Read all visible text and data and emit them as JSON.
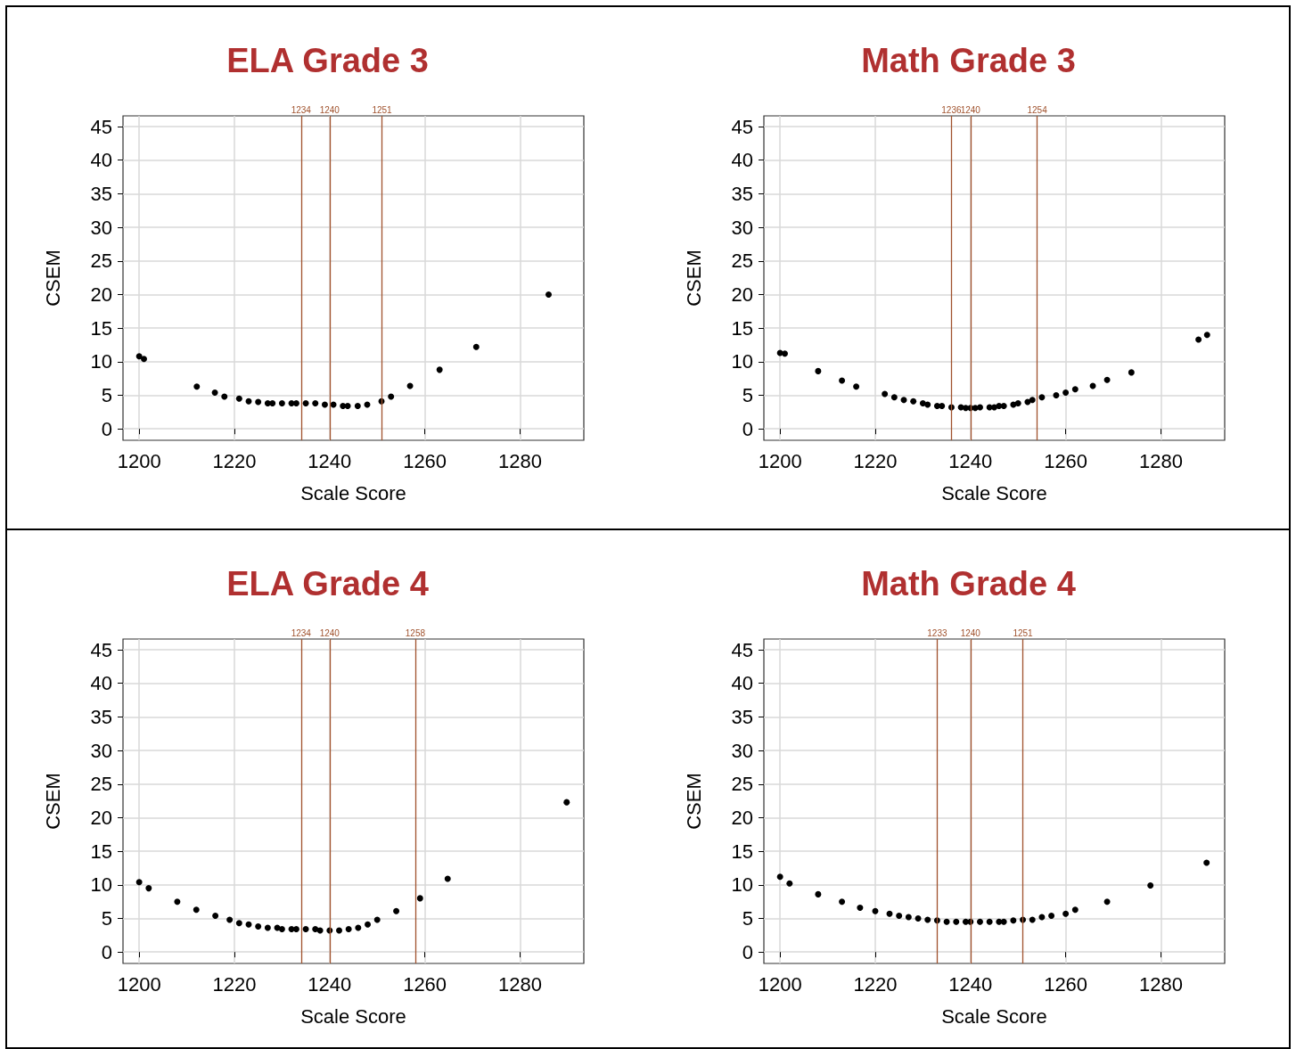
{
  "chart_data": [
    {
      "type": "scatter",
      "title": "ELA Grade 3",
      "xlabel": "Scale Score",
      "ylabel": "CSEM",
      "xlim": [
        1196.6,
        1293.4
      ],
      "ylim": [
        -1.7,
        46.6
      ],
      "xticks": [
        1200,
        1220,
        1240,
        1260,
        1280
      ],
      "yticks": [
        0,
        5,
        10,
        15,
        20,
        25,
        30,
        35,
        40,
        45
      ],
      "grid": true,
      "marker": "circle",
      "x": [
        1200,
        1201,
        1212.1,
        1215.9,
        1217.9,
        1221,
        1223,
        1225,
        1227,
        1228,
        1230,
        1232,
        1233,
        1235,
        1237,
        1239,
        1240.8,
        1242.8,
        1243.8,
        1245.9,
        1247.9,
        1250.9,
        1252.9,
        1256.9,
        1263.1,
        1270.8,
        1286
      ],
      "series": [
        {
          "color": "#000000",
          "values": [
            10.8,
            10.4,
            6.3,
            5.4,
            4.8,
            4.5,
            4.1,
            4.0,
            3.8,
            3.8,
            3.8,
            3.8,
            3.8,
            3.8,
            3.8,
            3.6,
            3.6,
            3.4,
            3.4,
            3.4,
            3.6,
            4.1,
            4.8,
            6.4,
            8.8,
            12.2,
            20.0
          ]
        }
      ],
      "ref_lines": [
        {
          "axis": "x",
          "value": 1234,
          "label": "1234",
          "color": "#a0522d"
        },
        {
          "axis": "x",
          "value": 1240,
          "label": "1240",
          "color": "#a0522d"
        },
        {
          "axis": "x",
          "value": 1251,
          "label": "1251",
          "color": "#a0522d"
        }
      ]
    },
    {
      "type": "scatter",
      "title": "Math Grade 3",
      "xlabel": "Scale Score",
      "ylabel": "CSEM",
      "xlim": [
        1196.6,
        1293.4
      ],
      "ylim": [
        -1.7,
        46.6
      ],
      "xticks": [
        1200,
        1220,
        1240,
        1260,
        1280
      ],
      "yticks": [
        0,
        5,
        10,
        15,
        20,
        25,
        30,
        35,
        40,
        45
      ],
      "grid": true,
      "marker": "circle",
      "x": [
        1200,
        1201,
        1208,
        1213,
        1216,
        1222,
        1224,
        1226,
        1228,
        1230,
        1231,
        1233,
        1234,
        1236,
        1238,
        1239,
        1240,
        1241,
        1242,
        1244,
        1245,
        1246,
        1247,
        1249,
        1250,
        1252,
        1253,
        1255,
        1258,
        1260,
        1262,
        1265.7,
        1268.7,
        1273.8,
        1287.9,
        1289.7
      ],
      "series": [
        {
          "color": "#000000",
          "values": [
            11.3,
            11.2,
            8.6,
            7.2,
            6.3,
            5.2,
            4.7,
            4.3,
            4.1,
            3.8,
            3.6,
            3.4,
            3.4,
            3.2,
            3.2,
            3.1,
            3.1,
            3.1,
            3.2,
            3.2,
            3.2,
            3.4,
            3.4,
            3.6,
            3.8,
            4.0,
            4.3,
            4.7,
            5.0,
            5.4,
            5.9,
            6.4,
            7.3,
            8.4,
            13.3,
            14.0
          ]
        }
      ],
      "ref_lines": [
        {
          "axis": "x",
          "value": 1236,
          "label": "1236",
          "color": "#a0522d"
        },
        {
          "axis": "x",
          "value": 1240,
          "label": "1240",
          "color": "#a0522d"
        },
        {
          "axis": "x",
          "value": 1254,
          "label": "1254",
          "color": "#a0522d"
        }
      ]
    },
    {
      "type": "scatter",
      "title": "ELA Grade 4",
      "xlabel": "Scale Score",
      "ylabel": "CSEM",
      "xlim": [
        1196.6,
        1293.4
      ],
      "ylim": [
        -1.7,
        46.6
      ],
      "xticks": [
        1200,
        1220,
        1240,
        1260,
        1280
      ],
      "yticks": [
        0,
        5,
        10,
        15,
        20,
        25,
        30,
        35,
        40,
        45
      ],
      "grid": true,
      "marker": "circle",
      "x": [
        1200,
        1202,
        1208,
        1212,
        1216,
        1219,
        1221,
        1223,
        1225,
        1227,
        1229,
        1230,
        1232,
        1233,
        1235,
        1237,
        1238,
        1240,
        1242,
        1244,
        1246,
        1248,
        1250,
        1254,
        1259,
        1264.8,
        1289.8
      ],
      "series": [
        {
          "color": "#000000",
          "values": [
            10.4,
            9.5,
            7.5,
            6.3,
            5.4,
            4.8,
            4.3,
            4.1,
            3.8,
            3.6,
            3.6,
            3.4,
            3.4,
            3.4,
            3.4,
            3.4,
            3.2,
            3.2,
            3.2,
            3.4,
            3.6,
            4.1,
            4.8,
            6.1,
            8.0,
            10.9,
            22.3
          ]
        }
      ],
      "ref_lines": [
        {
          "axis": "x",
          "value": 1234,
          "label": "1234",
          "color": "#a0522d"
        },
        {
          "axis": "x",
          "value": 1240,
          "label": "1240",
          "color": "#a0522d"
        },
        {
          "axis": "x",
          "value": 1258,
          "label": "1258",
          "color": "#a0522d"
        }
      ]
    },
    {
      "type": "scatter",
      "title": "Math Grade 4",
      "xlabel": "Scale Score",
      "ylabel": "CSEM",
      "xlim": [
        1196.6,
        1293.4
      ],
      "ylim": [
        -1.7,
        46.6
      ],
      "xticks": [
        1200,
        1220,
        1240,
        1260,
        1280
      ],
      "yticks": [
        0,
        5,
        10,
        15,
        20,
        25,
        30,
        35,
        40,
        45
      ],
      "grid": true,
      "marker": "circle",
      "x": [
        1200,
        1202,
        1208,
        1213,
        1216.8,
        1220,
        1223,
        1225,
        1227,
        1229,
        1231,
        1233,
        1235,
        1237,
        1239,
        1240,
        1242,
        1244,
        1246,
        1247,
        1249,
        1251,
        1253,
        1255,
        1257,
        1260,
        1262,
        1268.7,
        1277.8,
        1289.6
      ],
      "series": [
        {
          "color": "#000000",
          "values": [
            11.2,
            10.2,
            8.6,
            7.5,
            6.6,
            6.1,
            5.7,
            5.4,
            5.2,
            5.0,
            4.8,
            4.7,
            4.5,
            4.5,
            4.5,
            4.5,
            4.5,
            4.5,
            4.5,
            4.5,
            4.7,
            4.8,
            4.8,
            5.2,
            5.4,
            5.7,
            6.3,
            7.5,
            9.9,
            13.3
          ]
        }
      ],
      "ref_lines": [
        {
          "axis": "x",
          "value": 1233,
          "label": "1233",
          "color": "#a0522d"
        },
        {
          "axis": "x",
          "value": 1240,
          "label": "1240",
          "color": "#a0522d"
        },
        {
          "axis": "x",
          "value": 1251,
          "label": "1251",
          "color": "#a0522d"
        }
      ]
    }
  ]
}
